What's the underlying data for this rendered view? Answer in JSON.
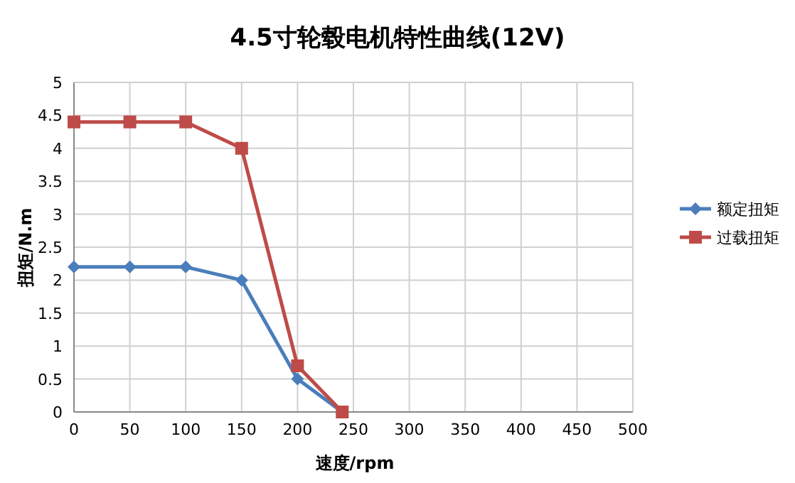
{
  "chart_data": {
    "type": "line",
    "title": "4.5寸轮毂电机特性曲线(12V)",
    "xlabel": "速度/rpm",
    "ylabel": "扭矩/N.m",
    "x": [
      0,
      50,
      100,
      150,
      200,
      240
    ],
    "series": [
      {
        "name": "额定扭矩",
        "color": "#4a7ebb",
        "values": [
          2.2,
          2.2,
          2.2,
          2.0,
          0.5,
          0
        ],
        "marker": "diamond"
      },
      {
        "name": "过载扭矩",
        "color": "#be4b48",
        "values": [
          4.4,
          4.4,
          4.4,
          4.0,
          0.7,
          0
        ],
        "marker": "square"
      }
    ],
    "xlim": [
      0,
      500
    ],
    "xticks": [
      0,
      50,
      100,
      150,
      200,
      250,
      300,
      350,
      400,
      450,
      500
    ],
    "ylim": [
      0,
      5
    ],
    "yticks": [
      0,
      0.5,
      1,
      1.5,
      2,
      2.5,
      3,
      3.5,
      4,
      4.5,
      5
    ],
    "grid": true,
    "legend": "right"
  }
}
